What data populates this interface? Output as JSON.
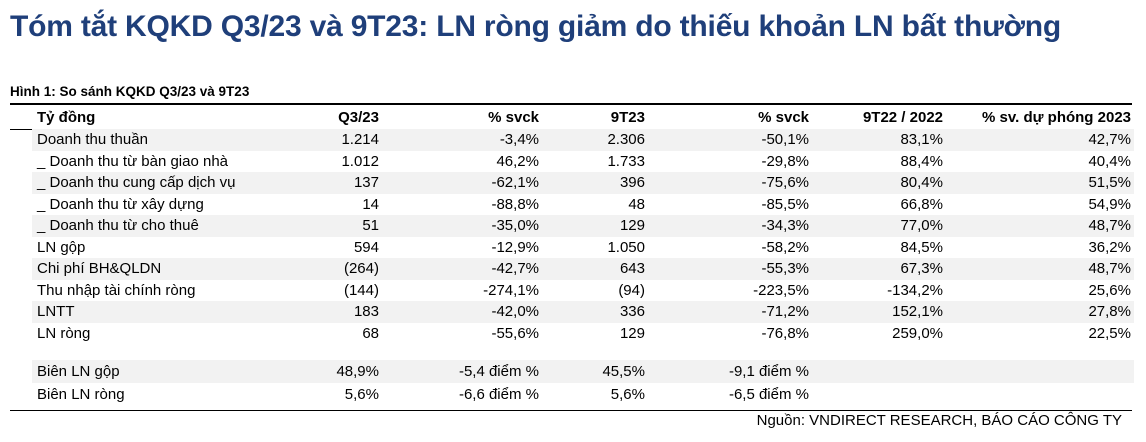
{
  "title": "Tóm tắt KQKD Q3/23 và 9T23: LN ròng giảm do thiếu khoản LN bất thường",
  "figure_label": "Hình 1: So sánh KQKD Q3/23 và 9T23",
  "headers": [
    "Tỷ đồng",
    "Q3/23",
    "% svck",
    "9T23",
    "% svck",
    "9T22 / 2022",
    "% sv. dự phóng 2023"
  ],
  "rows": [
    [
      "Doanh thu thuần",
      "1.214",
      "-3,4%",
      "2.306",
      "-50,1%",
      "83,1%",
      "42,7%"
    ],
    [
      "_ Doanh thu từ bàn giao nhà",
      "1.012",
      "46,2%",
      "1.733",
      "-29,8%",
      "88,4%",
      "40,4%"
    ],
    [
      "_ Doanh thu cung cấp dịch vụ",
      "137",
      "-62,1%",
      "396",
      "-75,6%",
      "80,4%",
      "51,5%"
    ],
    [
      "_ Doanh thu từ xây dựng",
      "14",
      "-88,8%",
      "48",
      "-85,5%",
      "66,8%",
      "54,9%"
    ],
    [
      "_ Doanh thu từ cho thuê",
      "51",
      "-35,0%",
      "129",
      "-34,3%",
      "77,0%",
      "48,7%"
    ],
    [
      "LN gộp",
      "594",
      "-12,9%",
      "1.050",
      "-58,2%",
      "84,5%",
      "36,2%"
    ],
    [
      "Chi phí BH&QLDN",
      "(264)",
      "-42,7%",
      "643",
      "-55,3%",
      "67,3%",
      "48,7%"
    ],
    [
      "Thu nhập tài chính ròng",
      "(144)",
      "-274,1%",
      "(94)",
      "-223,5%",
      "-134,2%",
      "25,6%"
    ],
    [
      "LNTT",
      "183",
      "-42,0%",
      "336",
      "-71,2%",
      "152,1%",
      "27,8%"
    ],
    [
      "LN ròng",
      "68",
      "-55,6%",
      "129",
      "-76,8%",
      "259,0%",
      "22,5%"
    ]
  ],
  "margin_rows": [
    [
      "Biên LN gộp",
      "48,9%",
      "-5,4 điểm %",
      "45,5%",
      "-9,1 điểm %",
      "",
      ""
    ],
    [
      "Biên LN ròng",
      "5,6%",
      "-6,6 điểm %",
      "5,6%",
      "-6,5 điểm %",
      "",
      ""
    ]
  ],
  "source": "Nguồn: VNDIRECT RESEARCH, BÁO CÁO CÔNG TY",
  "colors": {
    "title": "#1f3f7a",
    "row_shade": "#f2f2f2"
  }
}
